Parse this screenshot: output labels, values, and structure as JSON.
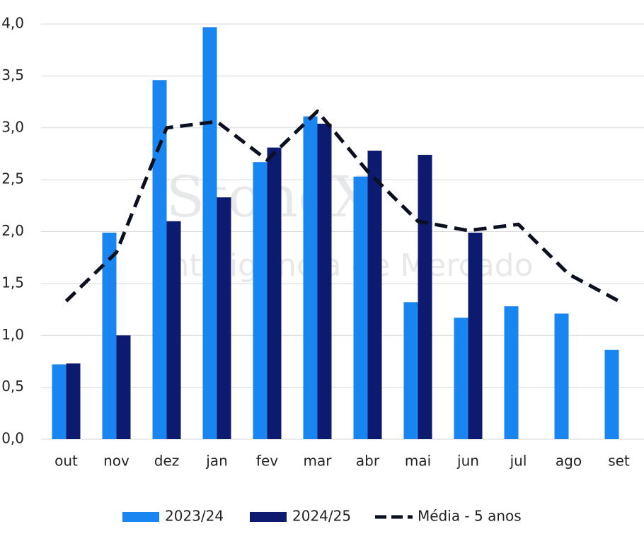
{
  "chart_data": {
    "type": "bar",
    "watermark": [
      "StoneX",
      "Inteligência de Mercado"
    ],
    "categories": [
      "out",
      "nov",
      "dez",
      "jan",
      "fev",
      "mar",
      "abr",
      "mai",
      "jun",
      "jul",
      "ago",
      "set"
    ],
    "series": [
      {
        "name": "2023/24",
        "type": "bar",
        "color": "#1985f1",
        "values": [
          0.72,
          1.99,
          3.46,
          3.97,
          2.67,
          3.11,
          2.53,
          1.32,
          1.17,
          1.28,
          1.21,
          0.86
        ]
      },
      {
        "name": "2024/25",
        "type": "bar",
        "color": "#0c1a70",
        "values": [
          0.73,
          1.0,
          2.1,
          2.33,
          2.81,
          3.04,
          2.78,
          2.74,
          1.99,
          null,
          null,
          null
        ]
      },
      {
        "name": "Média - 5 anos",
        "type": "line",
        "dashed": true,
        "color": "#0b1020",
        "values": [
          1.33,
          1.8,
          3.0,
          3.06,
          2.69,
          3.16,
          2.58,
          2.1,
          2.01,
          2.07,
          1.59,
          1.33
        ]
      }
    ],
    "ylim": [
      0,
      4
    ],
    "yticks": [
      {
        "value": 0,
        "label": "0,0"
      },
      {
        "value": 0.5,
        "label": "0,5"
      },
      {
        "value": 1,
        "label": "1,0"
      },
      {
        "value": 1.5,
        "label": "1,5"
      },
      {
        "value": 2,
        "label": "2,0"
      },
      {
        "value": 2.5,
        "label": "2,5"
      },
      {
        "value": 3,
        "label": "3,0"
      },
      {
        "value": 3.5,
        "label": "3,5"
      },
      {
        "value": 4,
        "label": "4,0"
      }
    ],
    "grid": true,
    "legend": "bottom"
  }
}
